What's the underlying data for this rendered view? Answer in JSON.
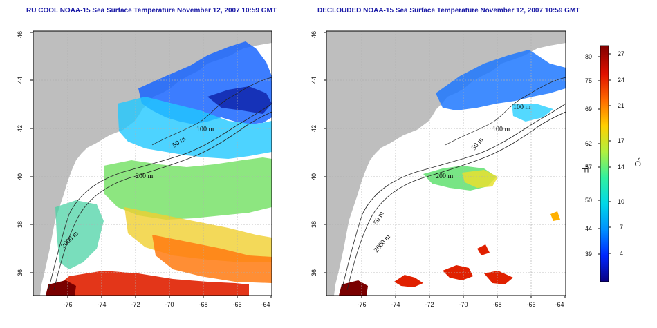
{
  "panels": [
    {
      "title": "RU COOL NOAA-15 Sea Surface Temperature November 12, 2007 10:59 GMT",
      "contour_labels": [
        "100 m",
        "50 m",
        "200 m",
        "2000 m"
      ]
    },
    {
      "title": "DECLOUDED NOAA-15 Sea Surface Temperature November 12, 2007 10:59 GMT",
      "contour_labels": [
        "100 m",
        "100 m",
        "50 m",
        "200 m",
        "50 m",
        "2000 m"
      ]
    }
  ],
  "axes": {
    "x_ticks": [
      "-76",
      "-74",
      "-72",
      "-70",
      "-68",
      "-66",
      "-64"
    ],
    "y_ticks": [
      "36",
      "38",
      "40",
      "42",
      "44",
      "46"
    ]
  },
  "colorbar": {
    "fahrenheit_unit": "°F",
    "celsius_unit": "°C",
    "fahrenheit_ticks": [
      "80",
      "75",
      "69",
      "62",
      "57",
      "50",
      "44",
      "39"
    ],
    "celsius_ticks": [
      "27",
      "24",
      "21",
      "17",
      "14",
      "10",
      "7",
      "4"
    ],
    "colors": [
      "#0a0080",
      "#0026ff",
      "#0090ff",
      "#00d8e8",
      "#30f0a0",
      "#b0f040",
      "#ffd000",
      "#ff6a00",
      "#e01000",
      "#800000"
    ]
  },
  "colors": {
    "land": "#bebebe",
    "ocean_cold": "#2060ff",
    "ocean_warm": "#ff3000"
  }
}
